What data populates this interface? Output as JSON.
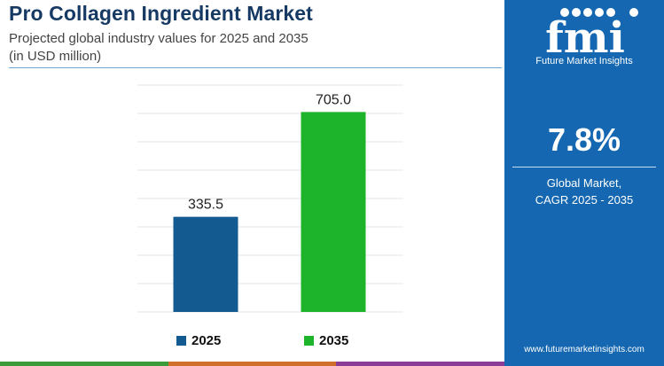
{
  "header": {
    "title": "Pro Collagen Ingredient Market",
    "subtitle_line1": "Projected global industry values for 2025 and 2035",
    "subtitle_line2": "(in USD million)"
  },
  "chart_data": {
    "type": "bar",
    "categories": [
      "2025",
      "2035"
    ],
    "values": [
      335.5,
      705.0
    ],
    "value_labels": [
      "335.5",
      "705.0"
    ],
    "colors": [
      "#135a91",
      "#1db32a"
    ],
    "ylim": [
      0,
      800
    ],
    "grid": true,
    "legend": "bottom",
    "title": "",
    "xlabel": "",
    "ylabel": ""
  },
  "legend": {
    "items": [
      {
        "label": "2025",
        "color": "#135a91"
      },
      {
        "label": "2035",
        "color": "#1db32a"
      }
    ]
  },
  "sidebar": {
    "logo_text": "fmi",
    "logo_subtext": "Future Market Insights",
    "cagr_value": "7.8%",
    "cagr_line1": "Global Market,",
    "cagr_line2": "CAGR 2025 - 2035",
    "website": "www.futuremarketinsights.com",
    "background_color": "#1467b0"
  },
  "footer": {
    "bar_colors": [
      "#3b9b3a",
      "#d06e2c",
      "#8a3c96"
    ]
  }
}
